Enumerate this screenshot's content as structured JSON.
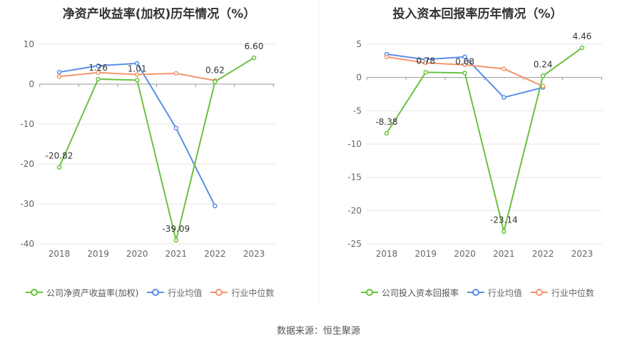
{
  "charts": {
    "left": {
      "title": "净资产收益率(加权)历年情况（%）"
    },
    "right": {
      "title": "投入资本回报率历年情况（%）"
    }
  },
  "source": "数据来源：恒生聚源",
  "chart_data": [
    {
      "type": "line",
      "title": "净资产收益率(加权)历年情况（%）",
      "x": [
        "2018",
        "2019",
        "2020",
        "2021",
        "2022",
        "2023"
      ],
      "ylim": [
        -40,
        10
      ],
      "yticks": [
        10,
        0,
        -10,
        -20,
        -30,
        -40
      ],
      "grid": true,
      "legend_position": "bottom",
      "series": [
        {
          "name": "公司净资产收益率(加权)",
          "color": "#6ac13f",
          "values": [
            -20.82,
            1.26,
            1.01,
            -39.09,
            0.62,
            6.6
          ],
          "labels": [
            "-20.82",
            "1.26",
            "1.01",
            "-39.09",
            "0.62",
            "6.60"
          ]
        },
        {
          "name": "行业均值",
          "color": "#5b8ee6",
          "values": [
            3.0,
            4.6,
            5.2,
            -11.0,
            -30.5,
            null
          ]
        },
        {
          "name": "行业中位数",
          "color": "#f4956b",
          "values": [
            1.9,
            2.9,
            2.4,
            2.7,
            0.9,
            null
          ]
        }
      ]
    },
    {
      "type": "line",
      "title": "投入资本回报率历年情况（%）",
      "x": [
        "2018",
        "2019",
        "2020",
        "2021",
        "2022",
        "2023"
      ],
      "ylim": [
        -25,
        5
      ],
      "yticks": [
        5,
        0,
        -5,
        -10,
        -15,
        -20,
        -25
      ],
      "grid": true,
      "legend_position": "bottom",
      "series": [
        {
          "name": "公司投入资本回报率",
          "color": "#6ac13f",
          "values": [
            -8.38,
            0.78,
            0.68,
            -23.14,
            0.24,
            4.46
          ],
          "labels": [
            "-8.38",
            "0.78",
            "0.68",
            "-23.14",
            "0.24",
            "4.46"
          ]
        },
        {
          "name": "行业均值",
          "color": "#5b8ee6",
          "values": [
            3.5,
            2.7,
            3.1,
            -3.0,
            -1.5,
            null
          ]
        },
        {
          "name": "行业中位数",
          "color": "#f4956b",
          "values": [
            3.1,
            2.2,
            1.9,
            1.3,
            -1.3,
            null
          ]
        }
      ]
    }
  ]
}
